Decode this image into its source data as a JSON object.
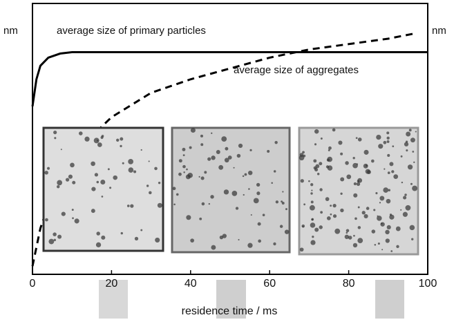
{
  "chart_data": {
    "type": "line",
    "y_label": "nm",
    "y2_label": "nm",
    "x_label": "residence time / ms",
    "annotations": [
      "average size of primary particles",
      "average size of aggregates"
    ],
    "xlim": [
      0,
      100
    ],
    "xticks": [
      0,
      20,
      40,
      60,
      80,
      100
    ],
    "ylim": [
      0,
      100
    ],
    "series": [
      {
        "color": "#000000",
        "linestyle": "solid",
        "x": [
          0,
          1,
          2,
          4,
          7,
          10,
          20,
          100
        ],
        "values": [
          62,
          72,
          77,
          80,
          81.5,
          82,
          82,
          82
        ]
      },
      {
        "color": "#000000",
        "linestyle": "dashed",
        "x": [
          0,
          2,
          5,
          10,
          20,
          30,
          40,
          50,
          60,
          70,
          80,
          90,
          97
        ],
        "values": [
          3,
          17,
          30,
          44,
          58,
          67,
          72,
          76,
          80,
          83,
          85,
          87,
          89
        ]
      }
    ]
  }
}
